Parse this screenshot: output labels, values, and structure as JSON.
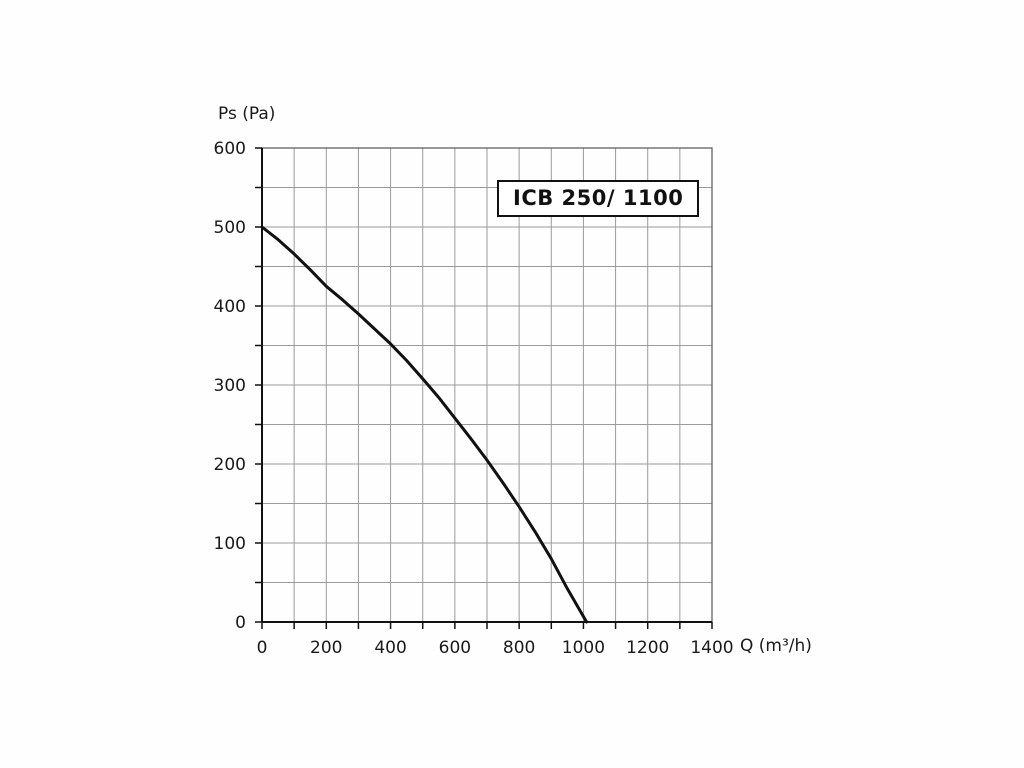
{
  "chart_data": {
    "type": "line",
    "title": "ICB 250/ 1100",
    "xlabel": "Q (m³/h)",
    "ylabel": "Ps (Pa)",
    "xlim": [
      0,
      1400
    ],
    "ylim": [
      0,
      600
    ],
    "x_tick_labels": [
      0,
      200,
      400,
      600,
      800,
      1000,
      1200,
      1400
    ],
    "y_tick_labels": [
      0,
      100,
      200,
      300,
      400,
      500,
      600
    ],
    "x_minor_step": 100,
    "y_minor_step": 50,
    "grid": true,
    "legend_position": "none",
    "curve_color": "#111111",
    "grid_color": "#9b9b9b",
    "series": [
      {
        "name": "ICB 250/ 1100",
        "points": [
          [
            0,
            500
          ],
          [
            50,
            484
          ],
          [
            100,
            466
          ],
          [
            150,
            446
          ],
          [
            200,
            425
          ],
          [
            250,
            408
          ],
          [
            300,
            390
          ],
          [
            350,
            371
          ],
          [
            400,
            352
          ],
          [
            450,
            331
          ],
          [
            500,
            308
          ],
          [
            550,
            284
          ],
          [
            600,
            258
          ],
          [
            650,
            232
          ],
          [
            700,
            205
          ],
          [
            750,
            176
          ],
          [
            800,
            146
          ],
          [
            850,
            114
          ],
          [
            900,
            80
          ],
          [
            950,
            42
          ],
          [
            1010,
            0
          ]
        ]
      }
    ]
  }
}
